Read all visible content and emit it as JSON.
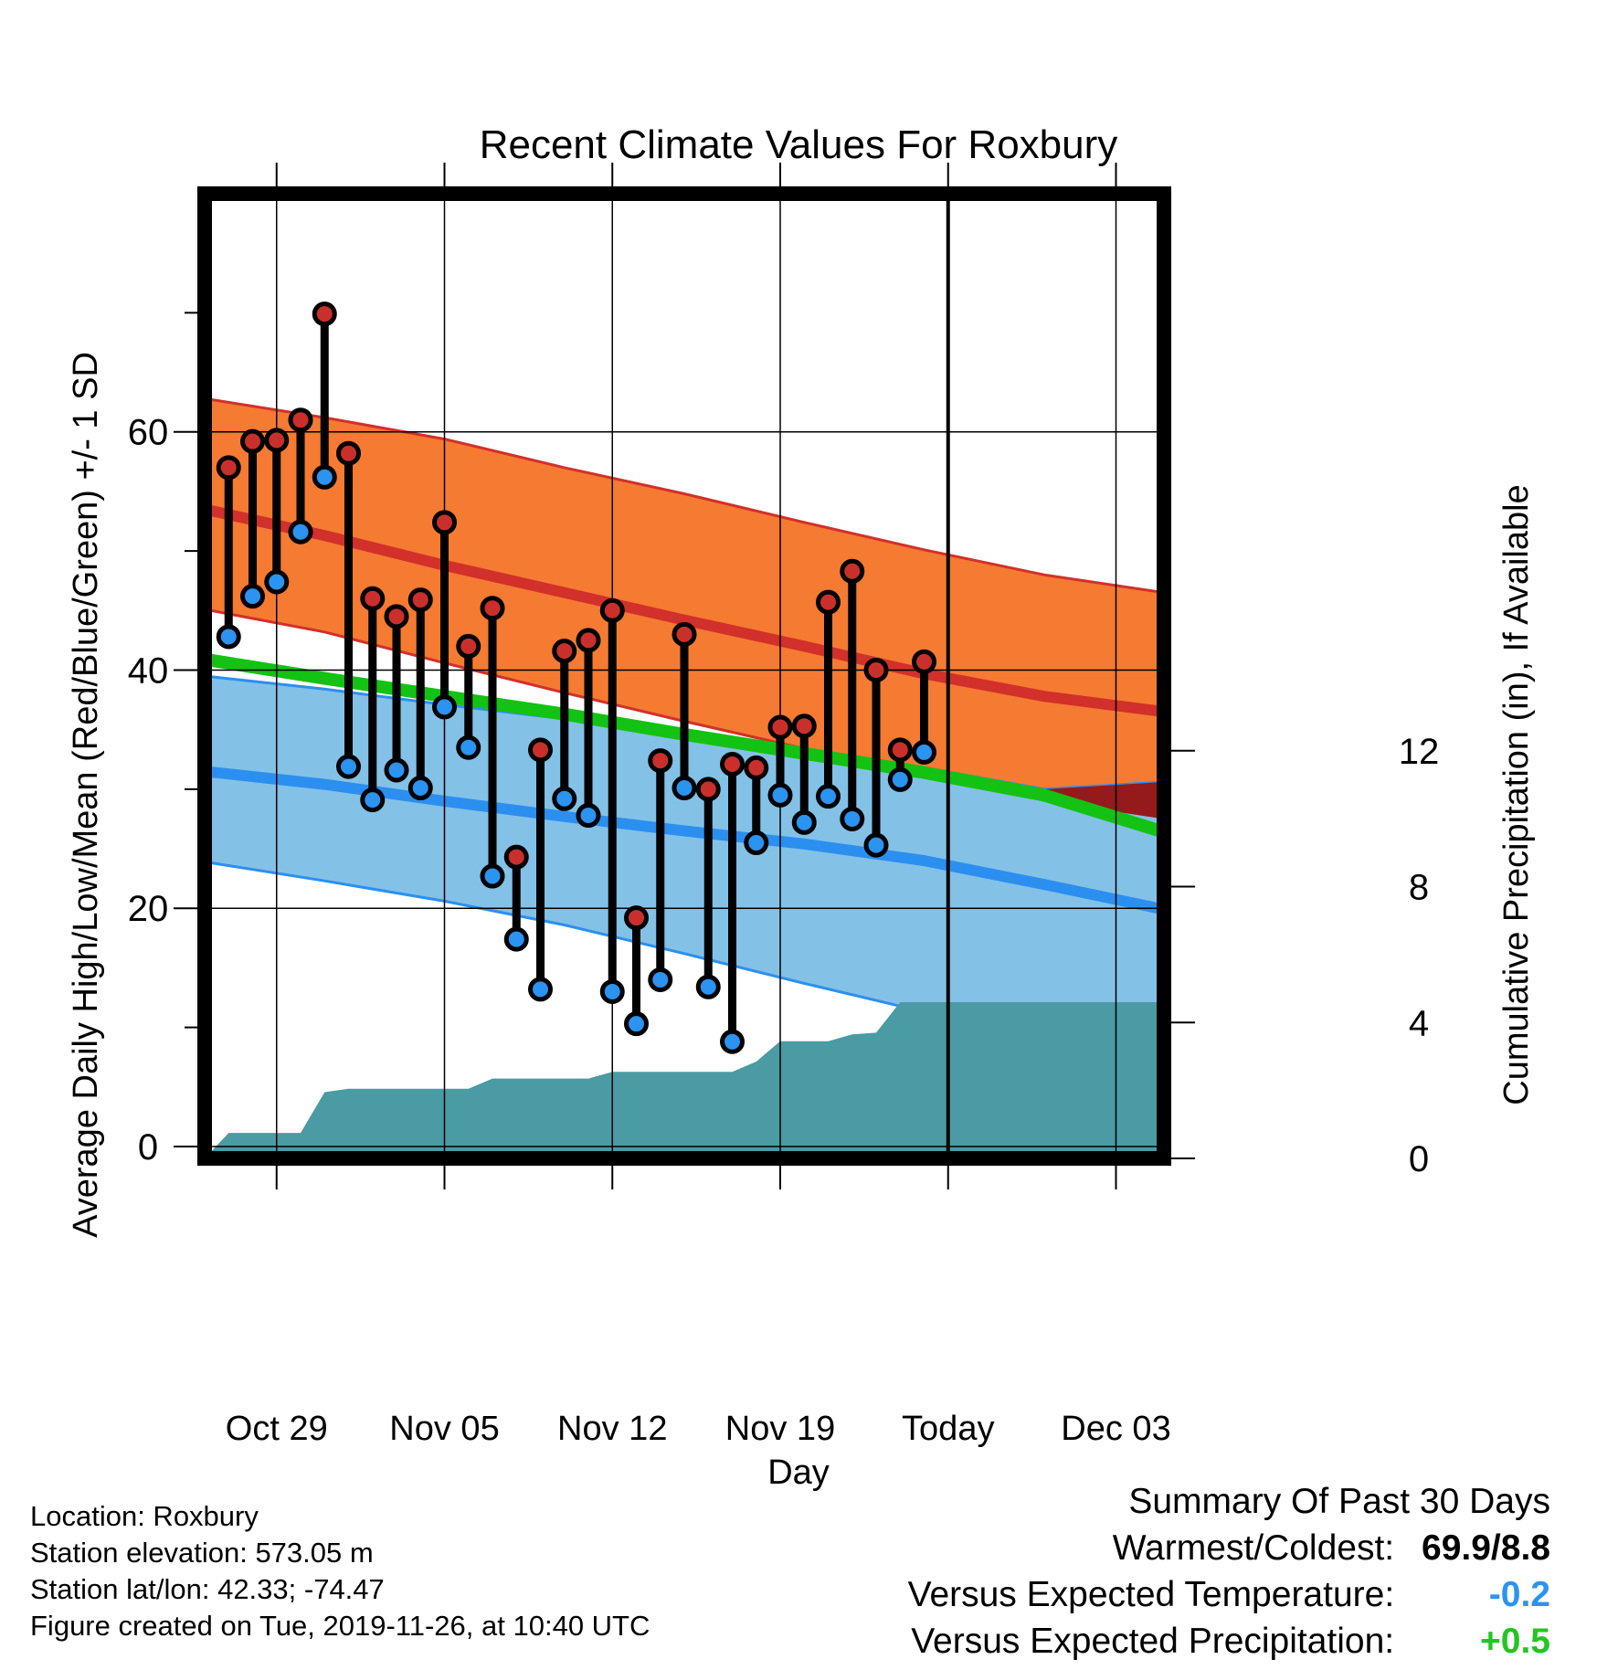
{
  "chart_data": {
    "type": "line",
    "title": "Recent Climate Values For Roxbury",
    "xlabel": "Day",
    "ylabel": "Average Daily High/Low/Mean (Red/Blue/Green) +/- 1 SD",
    "y2label": "Cumulative Precipitation (in), If Available",
    "ylim": [
      -1,
      80
    ],
    "y2lim": [
      0,
      28.4
    ],
    "yticks": [
      0,
      20,
      40,
      60
    ],
    "y2ticks": [
      0,
      4,
      8,
      12
    ],
    "xticks": [
      "Oct 29",
      "Nov 05",
      "Nov 12",
      "Nov 19",
      "Today",
      "Dec 03"
    ],
    "today_label": "30 Days",
    "grid": true,
    "x_dates": [
      "Oct 26",
      "Oct 27",
      "Oct 28",
      "Oct 29",
      "Oct 30",
      "Oct 31",
      "Nov 01",
      "Nov 02",
      "Nov 03",
      "Nov 04",
      "Nov 05",
      "Nov 06",
      "Nov 07",
      "Nov 08",
      "Nov 09",
      "Nov 10",
      "Nov 11",
      "Nov 12",
      "Nov 13",
      "Nov 14",
      "Nov 15",
      "Nov 16",
      "Nov 17",
      "Nov 18",
      "Nov 19",
      "Nov 20",
      "Nov 21",
      "Nov 22",
      "Nov 23",
      "Nov 24",
      "Nov 25",
      "Nov 26",
      "Nov 27",
      "Nov 28",
      "Nov 29",
      "Nov 30",
      "Dec 01",
      "Dec 02",
      "Dec 03",
      "Dec 04",
      "Dec 05"
    ],
    "observed": {
      "dates": [
        "Oct 27",
        "Oct 28",
        "Oct 29",
        "Oct 30",
        "Oct 31",
        "Nov 01",
        "Nov 02",
        "Nov 03",
        "Nov 04",
        "Nov 05",
        "Nov 06",
        "Nov 07",
        "Nov 08",
        "Nov 09",
        "Nov 10",
        "Nov 11",
        "Nov 12",
        "Nov 13",
        "Nov 14",
        "Nov 15",
        "Nov 16",
        "Nov 17",
        "Nov 18",
        "Nov 19",
        "Nov 20",
        "Nov 21",
        "Nov 22",
        "Nov 23",
        "Nov 24",
        "Nov 25",
        "Nov 26"
      ],
      "high": [
        57.0,
        59.2,
        59.3,
        61.0,
        69.9,
        58.2,
        46.0,
        44.5,
        45.9,
        52.4,
        42.0,
        45.2,
        24.3,
        33.3,
        41.6,
        42.5,
        45.0,
        19.2,
        32.4,
        43.0,
        30.0,
        32.1,
        31.8,
        35.2,
        35.3,
        45.7,
        48.3,
        40.0,
        33.3,
        40.7,
        null
      ],
      "low": [
        42.8,
        46.2,
        47.4,
        51.6,
        56.2,
        31.9,
        29.1,
        31.6,
        30.1,
        36.9,
        33.5,
        22.7,
        17.4,
        13.2,
        29.2,
        27.8,
        13.0,
        10.3,
        14.0,
        30.1,
        13.4,
        8.8,
        25.5,
        29.5,
        27.2,
        29.4,
        27.5,
        25.3,
        30.8,
        33.1,
        null
      ]
    },
    "normal_high": {
      "x": [
        0,
        5,
        10,
        15,
        20,
        25,
        30,
        35,
        40
      ],
      "mean": [
        53.5,
        51.3,
        48.8,
        46.5,
        44.2,
        42.0,
        39.7,
        37.8,
        36.5
      ],
      "sd_upper": [
        62.8,
        61.2,
        59.4,
        57.0,
        54.8,
        52.4,
        50.1,
        48.0,
        46.5
      ],
      "sd_lower": [
        45.1,
        43.2,
        40.6,
        38.1,
        35.7,
        33.4,
        31.1,
        29.0,
        27.5
      ]
    },
    "normal_low": {
      "x": [
        0,
        5,
        10,
        15,
        20,
        25,
        30,
        35,
        40
      ],
      "mean": [
        31.5,
        30.4,
        29.0,
        27.7,
        26.5,
        25.4,
        24.0,
        22.0,
        19.9
      ],
      "sd_upper": [
        39.5,
        38.4,
        37.1,
        35.9,
        34.5,
        33.1,
        31.8,
        30.0,
        30.6
      ],
      "sd_lower": [
        23.9,
        22.3,
        20.6,
        18.6,
        16.2,
        13.7,
        11.3,
        9.0,
        7.2
      ]
    },
    "normal_mean": {
      "x": [
        0,
        5,
        10,
        15,
        20,
        25,
        30,
        35,
        40
      ],
      "values": [
        40.9,
        39.3,
        37.8,
        36.3,
        34.6,
        33.0,
        31.4,
        29.5,
        26.4
      ]
    },
    "precipitation": {
      "dates": [
        "Oct 26",
        "Oct 27",
        "Oct 28",
        "Oct 29",
        "Oct 30",
        "Oct 31",
        "Nov 01",
        "Nov 02",
        "Nov 03",
        "Nov 04",
        "Nov 05",
        "Nov 06",
        "Nov 07",
        "Nov 08",
        "Nov 09",
        "Nov 10",
        "Nov 11",
        "Nov 12",
        "Nov 13",
        "Nov 14",
        "Nov 15",
        "Nov 16",
        "Nov 17",
        "Nov 18",
        "Nov 19",
        "Nov 20",
        "Nov 21",
        "Nov 22",
        "Nov 23",
        "Nov 24",
        "Nov 25",
        "Nov 26",
        "Dec 05"
      ],
      "cumulative": [
        0.0,
        0.75,
        0.75,
        0.75,
        0.75,
        1.95,
        2.05,
        2.05,
        2.05,
        2.05,
        2.05,
        2.05,
        2.35,
        2.35,
        2.35,
        2.35,
        2.35,
        2.55,
        2.55,
        2.55,
        2.55,
        2.55,
        2.55,
        2.85,
        3.45,
        3.45,
        3.45,
        3.65,
        3.7,
        4.6,
        4.6,
        4.6,
        4.6
      ]
    }
  },
  "footer": {
    "location": "Location: Roxbury",
    "elevation": "Station elevation: 573.05 m",
    "latlon": "Station lat/lon: 42.33; -74.47",
    "created": "Figure created on Tue, 2019-11-26, at 10:40 UTC"
  },
  "summary": {
    "title": "Summary Of Past 30 Days",
    "warmest_label": "Warmest/Coldest:",
    "warmest_value": "69.9/8.8",
    "temp_label": "Versus Expected Temperature:",
    "temp_value": "-0.2",
    "precip_label": "Versus Expected Precipitation:",
    "precip_value": "+0.5"
  },
  "colors": {
    "high_band": "#f57a32",
    "high_line": "#d2302a",
    "low_band": "#84c1e6",
    "low_line": "#2b8ff0",
    "mean_line": "#13c213",
    "overlap": "#941a1c",
    "precip": "#4a9ba3",
    "high_marker": "#c9302c",
    "low_marker": "#2b93f0",
    "temp_value": "#2b93f0",
    "precip_value": "#22c522"
  }
}
